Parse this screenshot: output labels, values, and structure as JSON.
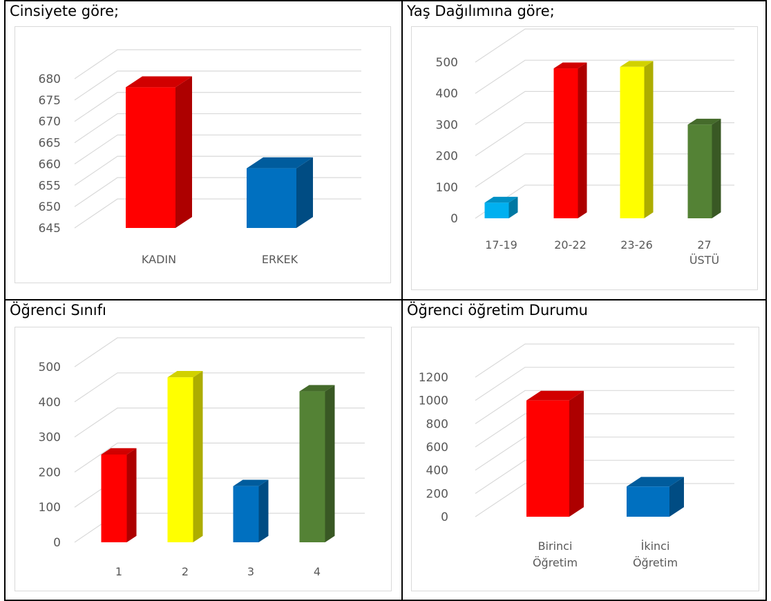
{
  "charts": [
    {
      "title": "Cinsiyete göre;",
      "chart_data": {
        "type": "bar",
        "categories": [
          "KADIN",
          "ERKEK"
        ],
        "values": [
          678,
          659
        ],
        "colors": [
          "#ff0000",
          "#0070c0"
        ],
        "ylim": [
          645,
          680
        ],
        "yticks": [
          "645",
          "650",
          "655",
          "660",
          "665",
          "670",
          "675",
          "680"
        ],
        "ytick_values": [
          645,
          650,
          655,
          660,
          665,
          670,
          675,
          680
        ],
        "grid": true,
        "title": "",
        "xlabel": "",
        "ylabel": ""
      }
    },
    {
      "title": "Yaş Dağılımına göre;",
      "chart_data": {
        "type": "bar",
        "categories": [
          "17-19",
          "20-22",
          "23-26",
          "27 ÜSTÜ"
        ],
        "values": [
          50,
          480,
          485,
          300
        ],
        "colors": [
          "#00b0f0",
          "#ff0000",
          "#ffff00",
          "#548235"
        ],
        "ylim": [
          0,
          500
        ],
        "yticks": [
          "0",
          "100",
          "200",
          "300",
          "400",
          "500"
        ],
        "ytick_values": [
          0,
          100,
          200,
          300,
          400,
          500
        ],
        "grid": true,
        "title": "",
        "xlabel": "",
        "ylabel": ""
      }
    },
    {
      "title": "Öğrenci Sınıfı",
      "chart_data": {
        "type": "bar",
        "categories": [
          "1",
          "2",
          "3",
          "4"
        ],
        "values": [
          250,
          470,
          160,
          430
        ],
        "colors": [
          "#ff0000",
          "#ffff00",
          "#0070c0",
          "#548235"
        ],
        "ylim": [
          0,
          500
        ],
        "yticks": [
          "0",
          "100",
          "200",
          "300",
          "400",
          "500"
        ],
        "ytick_values": [
          0,
          100,
          200,
          300,
          400,
          500
        ],
        "grid": true,
        "title": "",
        "xlabel": "",
        "ylabel": ""
      }
    },
    {
      "title": "Öğrenci öğretim Durumu",
      "chart_data": {
        "type": "bar",
        "categories": [
          "Birinci Öğretim",
          "İkinci Öğretim"
        ],
        "values": [
          1000,
          260
        ],
        "colors": [
          "#ff0000",
          "#0070c0"
        ],
        "ylim": [
          0,
          1200
        ],
        "yticks": [
          "0",
          "200",
          "400",
          "600",
          "800",
          "1000",
          "1200"
        ],
        "ytick_values": [
          0,
          200,
          400,
          600,
          800,
          1000,
          1200
        ],
        "grid": true,
        "title": "",
        "xlabel": "",
        "ylabel": ""
      }
    }
  ]
}
